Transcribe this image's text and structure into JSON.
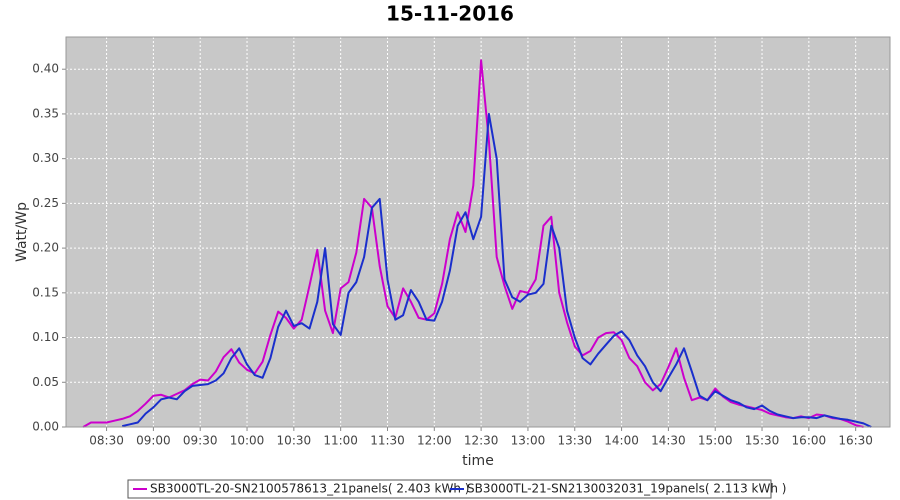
{
  "chart_data": {
    "type": "line",
    "title": "15-11-2016",
    "x_label": "time",
    "y_label": "Watt/Wp",
    "x": [
      "08:15",
      "08:20",
      "08:25",
      "08:30",
      "08:35",
      "08:40",
      "08:45",
      "08:50",
      "08:55",
      "09:00",
      "09:05",
      "09:10",
      "09:15",
      "09:20",
      "09:25",
      "09:30",
      "09:35",
      "09:40",
      "09:45",
      "09:50",
      "09:55",
      "10:00",
      "10:05",
      "10:10",
      "10:15",
      "10:20",
      "10:25",
      "10:30",
      "10:35",
      "10:40",
      "10:45",
      "10:50",
      "10:55",
      "11:00",
      "11:05",
      "11:10",
      "11:15",
      "11:20",
      "11:25",
      "11:30",
      "11:35",
      "11:40",
      "11:45",
      "11:50",
      "11:55",
      "12:00",
      "12:05",
      "12:10",
      "12:15",
      "12:20",
      "12:25",
      "12:30",
      "12:35",
      "12:40",
      "12:45",
      "12:50",
      "12:55",
      "13:00",
      "13:05",
      "13:10",
      "13:15",
      "13:20",
      "13:25",
      "13:30",
      "13:35",
      "13:40",
      "13:45",
      "13:50",
      "13:55",
      "14:00",
      "14:05",
      "14:10",
      "14:15",
      "14:20",
      "14:25",
      "14:30",
      "14:35",
      "14:40",
      "14:45",
      "14:50",
      "14:55",
      "15:00",
      "15:05",
      "15:10",
      "15:15",
      "15:20",
      "15:25",
      "15:30",
      "15:35",
      "15:40",
      "15:45",
      "15:50",
      "15:55",
      "16:00",
      "16:05",
      "16:10",
      "16:15",
      "16:20",
      "16:25",
      "16:30",
      "16:35",
      "16:40"
    ],
    "series": [
      {
        "name": "SB3000TL-20-SN2100578613_21panels( 2.403 kWh )",
        "color": "#cc00cc",
        "values": [
          0.0,
          0.005,
          0.005,
          0.005,
          0.007,
          0.009,
          0.012,
          0.018,
          0.026,
          0.035,
          0.036,
          0.033,
          0.037,
          0.041,
          0.048,
          0.053,
          0.052,
          0.062,
          0.078,
          0.087,
          0.072,
          0.064,
          0.06,
          0.073,
          0.103,
          0.129,
          0.122,
          0.11,
          0.12,
          0.158,
          0.198,
          0.13,
          0.105,
          0.155,
          0.162,
          0.195,
          0.255,
          0.245,
          0.18,
          0.135,
          0.122,
          0.155,
          0.14,
          0.122,
          0.12,
          0.127,
          0.16,
          0.21,
          0.24,
          0.218,
          0.27,
          0.41,
          0.32,
          0.19,
          0.158,
          0.132,
          0.152,
          0.15,
          0.165,
          0.225,
          0.235,
          0.15,
          0.117,
          0.09,
          0.08,
          0.085,
          0.1,
          0.105,
          0.106,
          0.097,
          0.077,
          0.068,
          0.05,
          0.041,
          0.048,
          0.067,
          0.088,
          0.055,
          0.03,
          0.033,
          0.03,
          0.043,
          0.034,
          0.028,
          0.025,
          0.023,
          0.021,
          0.019,
          0.015,
          0.013,
          0.011,
          0.01,
          0.012,
          0.01,
          0.014,
          0.013,
          0.01,
          0.009,
          0.006,
          0.002,
          0.0,
          null
        ]
      },
      {
        "name": "SB3000TL-21-SN2130032031_19panels( 2.113 kWh )",
        "color": "#1a2fcc",
        "values": [
          null,
          null,
          null,
          null,
          null,
          0.001,
          0.003,
          0.005,
          0.015,
          0.022,
          0.031,
          0.033,
          0.031,
          0.04,
          0.046,
          0.047,
          0.048,
          0.052,
          0.06,
          0.077,
          0.088,
          0.07,
          0.058,
          0.055,
          0.077,
          0.112,
          0.13,
          0.113,
          0.116,
          0.11,
          0.14,
          0.2,
          0.115,
          0.103,
          0.15,
          0.162,
          0.19,
          0.245,
          0.255,
          0.165,
          0.12,
          0.125,
          0.153,
          0.14,
          0.12,
          0.119,
          0.14,
          0.175,
          0.225,
          0.24,
          0.21,
          0.235,
          0.35,
          0.3,
          0.165,
          0.145,
          0.14,
          0.148,
          0.15,
          0.16,
          0.225,
          0.2,
          0.13,
          0.1,
          0.077,
          0.07,
          0.082,
          0.092,
          0.102,
          0.107,
          0.097,
          0.08,
          0.068,
          0.05,
          0.04,
          0.055,
          0.07,
          0.088,
          0.062,
          0.035,
          0.03,
          0.04,
          0.035,
          0.03,
          0.027,
          0.022,
          0.02,
          0.024,
          0.018,
          0.014,
          0.012,
          0.01,
          0.011,
          0.011,
          0.01,
          0.013,
          0.011,
          0.009,
          0.008,
          0.006,
          0.004,
          0.0
        ]
      }
    ],
    "xlim": [
      "08:04",
      "16:52"
    ],
    "xticks": [
      "08:30",
      "09:00",
      "09:30",
      "10:00",
      "10:30",
      "11:00",
      "11:30",
      "12:00",
      "12:30",
      "13:00",
      "13:30",
      "14:00",
      "14:30",
      "15:00",
      "15:30",
      "16:00",
      "16:30"
    ],
    "ylim": [
      0,
      0.436
    ],
    "yticks": [
      {
        "value": 0,
        "label": "0.00"
      },
      0.05,
      {
        "value": 0.1,
        "label": "0.10"
      },
      0.15,
      {
        "value": 0.2,
        "label": "0.20"
      },
      0.25,
      {
        "value": 0.3,
        "label": "0.30"
      },
      0.35,
      {
        "value": 0.4,
        "label": "0.40"
      }
    ],
    "grid": true,
    "legend": "bottom"
  }
}
